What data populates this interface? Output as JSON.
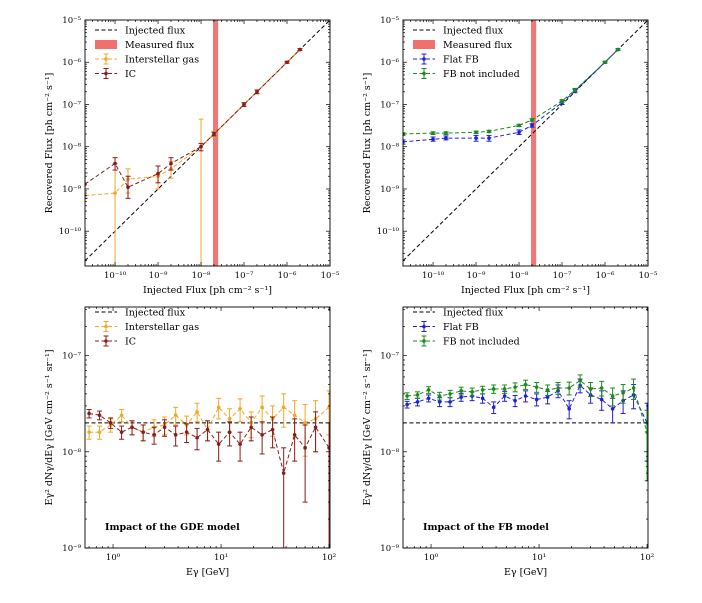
{
  "chart_data": [
    {
      "panel": "top-left",
      "type": "line",
      "xlabel": "Injected Flux [ph cm⁻² s⁻¹]",
      "ylabel": "Recovered Flux [ph cm⁻² s⁻¹]",
      "xscale": "log",
      "yscale": "log",
      "xlim": [
        2e-11,
        1e-05
      ],
      "ylim": [
        1.5e-11,
        1e-05
      ],
      "xticks": [
        {
          "v": 1e-10,
          "label": "10⁻¹⁰"
        },
        {
          "v": 1e-09,
          "label": "10⁻⁹"
        },
        {
          "v": 1e-08,
          "label": "10⁻⁸"
        },
        {
          "v": 1e-07,
          "label": "10⁻⁷"
        },
        {
          "v": 1e-06,
          "label": "10⁻⁶"
        },
        {
          "v": 1e-05,
          "label": "10⁻⁵"
        }
      ],
      "yticks": [
        {
          "v": 1e-10,
          "label": "10⁻¹⁰"
        },
        {
          "v": 1e-09,
          "label": "10⁻⁹"
        },
        {
          "v": 1e-08,
          "label": "10⁻⁸"
        },
        {
          "v": 1e-07,
          "label": "10⁻⁷"
        },
        {
          "v": 1e-06,
          "label": "10⁻⁶"
        },
        {
          "v": 1e-05,
          "label": "10⁻⁵"
        }
      ],
      "legend_position": "top-left",
      "legend": [
        "Injected flux",
        "Measured flux",
        "Interstellar gas",
        "IC"
      ],
      "injected_line": {
        "name": "Injected flux",
        "color": "#000000",
        "x": [
          2e-11,
          1e-05
        ],
        "y": [
          2e-11,
          1e-05
        ]
      },
      "measured_band": {
        "name": "Measured flux",
        "color": "#f07070",
        "x_range": [
          1.9e-08,
          2.5e-08
        ]
      },
      "series": [
        {
          "name": "Interstellar gas",
          "color": "#f5a623",
          "x": [
            2e-11,
            1e-10,
            2e-10,
            1e-09,
            2e-09,
            1e-08,
            2e-08,
            1e-07,
            2e-07,
            1e-06,
            2e-06
          ],
          "y": [
            7e-10,
            8e-10,
            1.7e-09,
            2e-09,
            3e-09,
            1e-08,
            2e-08,
            1e-07,
            2e-07,
            1e-06,
            2e-06
          ],
          "err_low": [
            1.5e-11,
            1.5e-11,
            8e-10,
            1e-09,
            1.8e-09,
            1.5e-11,
            1.7e-08,
            9e-08,
            1.8e-07,
            9.5e-07,
            1.9e-06
          ],
          "err_high": [
            5e-09,
            4e-09,
            3e-09,
            3.5e-09,
            4.5e-09,
            4.5e-08,
            2.3e-08,
            1.1e-07,
            2.2e-07,
            1.05e-06,
            2.1e-06
          ]
        },
        {
          "name": "IC",
          "color": "#8b1a1a",
          "x": [
            2e-11,
            1e-10,
            2e-10,
            1e-09,
            2e-09,
            1e-08,
            2e-08,
            1e-07,
            2e-07,
            1e-06,
            2e-06
          ],
          "y": [
            1.3e-09,
            4e-09,
            1.1e-09,
            2.3e-09,
            4e-09,
            1e-08,
            2e-08,
            1e-07,
            2e-07,
            1e-06,
            2e-06
          ],
          "err_low": [
            6e-10,
            2.8e-09,
            6e-10,
            1.4e-09,
            2.8e-09,
            8e-09,
            1.8e-08,
            9e-08,
            1.8e-07,
            9.5e-07,
            1.9e-06
          ],
          "err_high": [
            2.4e-09,
            5.5e-09,
            2e-09,
            3.5e-09,
            5.5e-09,
            1.2e-08,
            2.2e-08,
            1.1e-07,
            2.2e-07,
            1.05e-06,
            2.1e-06
          ]
        }
      ]
    },
    {
      "panel": "top-right",
      "type": "line",
      "xlabel": "Injected Flux [ph cm⁻² s⁻¹]",
      "ylabel": "Recovered Flux [ph cm⁻² s⁻¹]",
      "xscale": "log",
      "yscale": "log",
      "xlim": [
        2e-11,
        1e-05
      ],
      "ylim": [
        1.5e-11,
        1e-05
      ],
      "xticks": [
        {
          "v": 1e-10,
          "label": "10⁻¹⁰"
        },
        {
          "v": 1e-09,
          "label": "10⁻⁹"
        },
        {
          "v": 1e-08,
          "label": "10⁻⁸"
        },
        {
          "v": 1e-07,
          "label": "10⁻⁷"
        },
        {
          "v": 1e-06,
          "label": "10⁻⁶"
        },
        {
          "v": 1e-05,
          "label": "10⁻⁵"
        }
      ],
      "yticks": [
        {
          "v": 1e-10,
          "label": "10⁻¹⁰"
        },
        {
          "v": 1e-09,
          "label": "10⁻⁹"
        },
        {
          "v": 1e-08,
          "label": "10⁻⁸"
        },
        {
          "v": 1e-07,
          "label": "10⁻⁷"
        },
        {
          "v": 1e-06,
          "label": "10⁻⁶"
        },
        {
          "v": 1e-05,
          "label": "10⁻⁵"
        }
      ],
      "legend_position": "top-left",
      "legend": [
        "Injected flux",
        "Measured flux",
        "Flat FB",
        "FB not included"
      ],
      "injected_line": {
        "name": "Injected flux",
        "color": "#000000",
        "x": [
          2e-11,
          1e-05
        ],
        "y": [
          2e-11,
          1e-05
        ]
      },
      "measured_band": {
        "name": "Measured flux",
        "color": "#f07070",
        "x_range": [
          1.9e-08,
          2.5e-08
        ]
      },
      "series": [
        {
          "name": "Flat FB",
          "color": "#1f1fd8",
          "x": [
            2e-11,
            1e-10,
            2e-10,
            1e-09,
            2e-09,
            1e-08,
            2e-08,
            1e-07,
            2e-07,
            1e-06,
            2e-06
          ],
          "y": [
            1.3e-08,
            1.5e-08,
            1.6e-08,
            1.6e-08,
            1.6e-08,
            2.2e-08,
            3.2e-08,
            1.1e-07,
            2.1e-07,
            1e-06,
            2e-06
          ],
          "err_low": [
            1.15e-08,
            1.35e-08,
            1.45e-08,
            1.35e-08,
            1.35e-08,
            1.95e-08,
            2.9e-08,
            1e-07,
            1.9e-07,
            9.5e-07,
            1.9e-06
          ],
          "err_high": [
            1.45e-08,
            1.7e-08,
            1.8e-08,
            1.85e-08,
            1.85e-08,
            2.5e-08,
            3.5e-08,
            1.2e-07,
            2.3e-07,
            1.05e-06,
            2.1e-06
          ]
        },
        {
          "name": "FB not included",
          "color": "#1a8a1a",
          "x": [
            2e-11,
            1e-10,
            2e-10,
            1e-09,
            2e-09,
            1e-08,
            2e-08,
            1e-07,
            2e-07,
            1e-06,
            2e-06
          ],
          "y": [
            2e-08,
            2.1e-08,
            2.1e-08,
            2.2e-08,
            2.3e-08,
            3.2e-08,
            4.3e-08,
            1.2e-07,
            2.2e-07,
            1e-06,
            2e-06
          ],
          "err_low": [
            1.85e-08,
            1.95e-08,
            1.95e-08,
            2.05e-08,
            2.15e-08,
            3e-08,
            4e-08,
            1.1e-07,
            2e-07,
            9.5e-07,
            1.9e-06
          ],
          "err_high": [
            2.15e-08,
            2.25e-08,
            2.25e-08,
            2.35e-08,
            2.45e-08,
            3.4e-08,
            4.6e-08,
            1.3e-07,
            2.4e-07,
            1.05e-06,
            2.1e-06
          ]
        }
      ]
    },
    {
      "panel": "bottom-left",
      "type": "line",
      "xlabel": "Eγ [GeV]",
      "ylabel": "Eγ² dNγ/dEγ [GeV cm⁻² s⁻¹ sr⁻¹]",
      "xscale": "log",
      "yscale": "log",
      "xlim": [
        0.55,
        102
      ],
      "ylim": [
        1e-09,
        3.2e-07
      ],
      "xticks": [
        {
          "v": 1,
          "label": "10⁰"
        },
        {
          "v": 10,
          "label": "10¹"
        },
        {
          "v": 100,
          "label": "10²"
        }
      ],
      "yticks": [
        {
          "v": 1e-09,
          "label": "10⁻⁹"
        },
        {
          "v": 1e-08,
          "label": "10⁻⁸"
        },
        {
          "v": 1e-07,
          "label": "10⁻⁷"
        }
      ],
      "legend_position": "top-left",
      "legend": [
        "Injected flux",
        "Interstellar gas",
        "IC"
      ],
      "annotation": "Impact of the GDE model",
      "injected_line": {
        "name": "Injected flux",
        "color": "#000000",
        "x": [
          0.55,
          102
        ],
        "y": [
          2e-08,
          2e-08
        ]
      },
      "series": [
        {
          "name": "Interstellar gas",
          "color": "#f5a623",
          "x": [
            0.6,
            0.75,
            0.95,
            1.2,
            1.5,
            1.9,
            2.4,
            3.0,
            3.8,
            4.8,
            6.0,
            7.5,
            9.5,
            12,
            15,
            19,
            24,
            30,
            38,
            48,
            60,
            75,
            100
          ],
          "y": [
            1.6e-08,
            1.6e-08,
            1.9e-08,
            2.4e-08,
            1.8e-08,
            1.6e-08,
            1.8e-08,
            1.9e-08,
            2.4e-08,
            1.9e-08,
            2.6e-08,
            1.7e-08,
            2.9e-08,
            2.2e-08,
            2.8e-08,
            2e-08,
            2.9e-08,
            2.2e-08,
            2.9e-08,
            2.4e-08,
            2e-08,
            2.2e-08,
            2.9e-08
          ],
          "err_low": [
            1.35e-08,
            1.35e-08,
            1.6e-08,
            2.05e-08,
            1.5e-08,
            1.3e-08,
            1.45e-08,
            1.5e-08,
            1.9e-08,
            1.5e-08,
            2.05e-08,
            1.3e-08,
            2.2e-08,
            1.6e-08,
            2.05e-08,
            1.4e-08,
            2e-08,
            1.45e-08,
            1.8e-08,
            1.4e-08,
            9e-09,
            1e-08,
            1.5e-08
          ],
          "err_high": [
            1.85e-08,
            1.85e-08,
            2.2e-08,
            2.75e-08,
            2.1e-08,
            1.9e-08,
            2.15e-08,
            2.3e-08,
            2.9e-08,
            2.35e-08,
            3.2e-08,
            2.1e-08,
            3.6e-08,
            2.8e-08,
            3.55e-08,
            2.6e-08,
            3.8e-08,
            3e-08,
            4e-08,
            3.4e-08,
            3.1e-08,
            3.4e-08,
            4.3e-08
          ]
        },
        {
          "name": "IC",
          "color": "#8b1a1a",
          "x": [
            0.6,
            0.75,
            0.95,
            1.2,
            1.5,
            1.9,
            2.4,
            3.0,
            3.8,
            4.8,
            6.0,
            7.5,
            9.5,
            12,
            15,
            19,
            24,
            30,
            38,
            48,
            60,
            75,
            100
          ],
          "y": [
            2.5e-08,
            2.4e-08,
            2e-08,
            1.6e-08,
            1.8e-08,
            1.6e-08,
            1.5e-08,
            1.8e-08,
            1.5e-08,
            1.6e-08,
            1.4e-08,
            1.7e-08,
            1.2e-08,
            1.6e-08,
            1.2e-08,
            1.8e-08,
            1.5e-08,
            1.7e-08,
            6e-09,
            1.5e-08,
            1.1e-08,
            1.8e-08,
            1.1e-08
          ],
          "err_low": [
            2.25e-08,
            2.15e-08,
            1.75e-08,
            1.35e-08,
            1.5e-08,
            1.3e-08,
            1.2e-08,
            1.45e-08,
            1.15e-08,
            1.25e-08,
            1.05e-08,
            1.3e-08,
            8e-09,
            1.15e-08,
            8e-09,
            1.3e-08,
            9.5e-09,
            1.1e-08,
            1e-09,
            8e-09,
            3e-09,
            1e-08,
            1e-09
          ],
          "err_high": [
            2.75e-08,
            2.65e-08,
            2.25e-08,
            1.85e-08,
            2.1e-08,
            1.9e-08,
            1.8e-08,
            2.15e-08,
            1.85e-08,
            1.95e-08,
            1.75e-08,
            2.1e-08,
            1.6e-08,
            2.05e-08,
            1.6e-08,
            2.3e-08,
            2.05e-08,
            2.3e-08,
            1.1e-08,
            2.2e-08,
            1.9e-08,
            2.6e-08,
            2e-08
          ]
        }
      ]
    },
    {
      "panel": "bottom-right",
      "type": "line",
      "xlabel": "Eγ [GeV]",
      "ylabel": "Eγ² dNγ/dEγ [GeV cm⁻² s⁻¹ sr⁻¹]",
      "xscale": "log",
      "yscale": "log",
      "xlim": [
        0.55,
        102
      ],
      "ylim": [
        1e-09,
        3.2e-07
      ],
      "xticks": [
        {
          "v": 1,
          "label": "10⁰"
        },
        {
          "v": 10,
          "label": "10¹"
        },
        {
          "v": 100,
          "label": "10²"
        }
      ],
      "yticks": [
        {
          "v": 1e-09,
          "label": "10⁻⁹"
        },
        {
          "v": 1e-08,
          "label": "10⁻⁸"
        },
        {
          "v": 1e-07,
          "label": "10⁻⁷"
        }
      ],
      "legend_position": "top-left",
      "legend": [
        "Injected flux",
        "Flat FB",
        "FB not included"
      ],
      "annotation": "Impact of the FB model",
      "injected_line": {
        "name": "Injected flux",
        "color": "#000000",
        "x": [
          0.55,
          102
        ],
        "y": [
          2e-08,
          2e-08
        ]
      },
      "series": [
        {
          "name": "Flat FB",
          "color": "#1f1fd8",
          "x": [
            0.6,
            0.75,
            0.95,
            1.2,
            1.5,
            1.9,
            2.4,
            3.0,
            3.8,
            4.8,
            6.0,
            7.5,
            9.5,
            12,
            15,
            19,
            24,
            30,
            38,
            48,
            60,
            75,
            100
          ],
          "y": [
            3.1e-08,
            3.3e-08,
            3.6e-08,
            3.3e-08,
            3.3e-08,
            3.7e-08,
            3.8e-08,
            3.6e-08,
            2.9e-08,
            3.8e-08,
            3.4e-08,
            3.8e-08,
            3.5e-08,
            3.7e-08,
            4.3e-08,
            2.8e-08,
            4.9e-08,
            3.9e-08,
            3.5e-08,
            2.8e-08,
            3.4e-08,
            3.9e-08,
            2e-08
          ],
          "err_low": [
            2.85e-08,
            3e-08,
            3.3e-08,
            2.95e-08,
            2.95e-08,
            3.35e-08,
            3.4e-08,
            3.2e-08,
            2.5e-08,
            3.35e-08,
            2.95e-08,
            3.3e-08,
            3e-08,
            3.15e-08,
            3.65e-08,
            2.2e-08,
            4.1e-08,
            3.2e-08,
            2.7e-08,
            2e-08,
            2.5e-08,
            2.8e-08,
            8e-09
          ],
          "err_high": [
            3.35e-08,
            3.6e-08,
            3.9e-08,
            3.65e-08,
            3.65e-08,
            4.05e-08,
            4.2e-08,
            4e-08,
            3.3e-08,
            4.25e-08,
            3.85e-08,
            4.3e-08,
            4e-08,
            4.25e-08,
            4.95e-08,
            3.4e-08,
            5.7e-08,
            4.6e-08,
            4.3e-08,
            3.6e-08,
            4.3e-08,
            5e-08,
            3.2e-08
          ]
        },
        {
          "name": "FB not included",
          "color": "#1a8a1a",
          "x": [
            0.6,
            0.75,
            0.95,
            1.2,
            1.5,
            1.9,
            2.4,
            3.0,
            3.8,
            4.8,
            6.0,
            7.5,
            9.5,
            12,
            15,
            19,
            24,
            30,
            38,
            48,
            60,
            75,
            100
          ],
          "y": [
            3.8e-08,
            3.9e-08,
            4.4e-08,
            3.8e-08,
            4e-08,
            4.3e-08,
            4.2e-08,
            4.4e-08,
            4.5e-08,
            4.5e-08,
            4.7e-08,
            5e-08,
            4.7e-08,
            4.4e-08,
            4.6e-08,
            4.6e-08,
            5.5e-08,
            4.5e-08,
            4.6e-08,
            3.8e-08,
            4.1e-08,
            4.6e-08,
            1.6e-08
          ],
          "err_low": [
            3.5e-08,
            3.6e-08,
            4.05e-08,
            3.45e-08,
            3.65e-08,
            3.9e-08,
            3.8e-08,
            4e-08,
            4.05e-08,
            4.05e-08,
            4.2e-08,
            4.45e-08,
            4.15e-08,
            3.85e-08,
            3.95e-08,
            3.9e-08,
            4.7e-08,
            3.75e-08,
            3.8e-08,
            3e-08,
            3.2e-08,
            3.5e-08,
            5e-09
          ],
          "err_high": [
            4.1e-08,
            4.2e-08,
            4.75e-08,
            4.15e-08,
            4.35e-08,
            4.7e-08,
            4.6e-08,
            4.8e-08,
            4.95e-08,
            4.95e-08,
            5.2e-08,
            5.55e-08,
            5.25e-08,
            4.95e-08,
            5.25e-08,
            5.3e-08,
            6.3e-08,
            5.25e-08,
            5.4e-08,
            4.6e-08,
            5e-08,
            5.7e-08,
            2.7e-08
          ]
        }
      ]
    }
  ]
}
